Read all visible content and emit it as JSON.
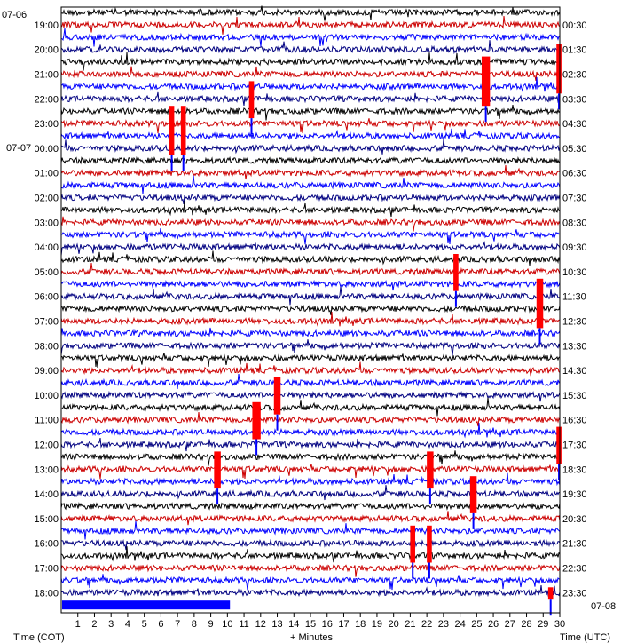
{
  "chart_data": {
    "type": "line",
    "title": "",
    "xlabel": "+ Minutes",
    "left_axis_label": "Time (COT)",
    "right_axis_label": "Time (UTC)",
    "start_date_label": "07-06",
    "next_day_label": "07-07",
    "end_date_label": "07-08",
    "x_ticks": [
      "1",
      "2",
      "3",
      "4",
      "5",
      "6",
      "7",
      "8",
      "9",
      "10",
      "11",
      "12",
      "13",
      "14",
      "15",
      "16",
      "17",
      "18",
      "19",
      "20",
      "21",
      "22",
      "23",
      "24",
      "25",
      "26",
      "27",
      "28",
      "29",
      "30"
    ],
    "xlim": [
      0,
      30
    ],
    "lines_per_hour": 2,
    "left_hour_labels": [
      "19:00",
      "20:00",
      "21:00",
      "22:00",
      "23:00",
      "00:00",
      "01:00",
      "02:00",
      "03:00",
      "04:00",
      "05:00",
      "06:00",
      "07:00",
      "08:00",
      "09:00",
      "10:00",
      "11:00",
      "12:00",
      "13:00",
      "14:00",
      "15:00",
      "16:00",
      "17:00",
      "18:00"
    ],
    "right_hour_labels": [
      "00:30",
      "01:30",
      "02:30",
      "03:30",
      "04:30",
      "05:30",
      "06:30",
      "07:30",
      "08:30",
      "09:30",
      "10:30",
      "11:30",
      "12:30",
      "13:30",
      "14:30",
      "15:30",
      "16:30",
      "17:30",
      "18:30",
      "19:30",
      "20:30",
      "21:30",
      "22:30",
      "23:30"
    ],
    "trace_colors": [
      "#000000",
      "#cc0000",
      "#0000ff",
      "#000080"
    ],
    "clip_color": "#ff0000",
    "grid": false,
    "events": [
      {
        "hour_line": 4,
        "minute": 25.3,
        "width": 0.5,
        "span_lines": 4
      },
      {
        "hour_line": 3,
        "minute": 29.8,
        "width": 0.3,
        "span_lines": 4
      },
      {
        "hour_line": 8,
        "minute": 6.5,
        "width": 0.3,
        "span_lines": 4
      },
      {
        "hour_line": 8,
        "minute": 7.2,
        "width": 0.3,
        "span_lines": 4
      },
      {
        "hour_line": 6,
        "minute": 11.3,
        "width": 0.3,
        "span_lines": 3
      },
      {
        "hour_line": 22,
        "minute": 28.6,
        "width": 0.4,
        "span_lines": 4
      },
      {
        "hour_line": 20,
        "minute": 23.6,
        "width": 0.3,
        "span_lines": 3
      },
      {
        "hour_line": 30,
        "minute": 12.8,
        "width": 0.4,
        "span_lines": 3
      },
      {
        "hour_line": 32,
        "minute": 11.5,
        "width": 0.5,
        "span_lines": 3
      },
      {
        "hour_line": 34,
        "minute": 29.8,
        "width": 0.3,
        "span_lines": 3
      },
      {
        "hour_line": 36,
        "minute": 22.0,
        "width": 0.4,
        "span_lines": 3
      },
      {
        "hour_line": 38,
        "minute": 24.6,
        "width": 0.4,
        "span_lines": 3
      },
      {
        "hour_line": 36,
        "minute": 9.2,
        "width": 0.4,
        "span_lines": 3
      },
      {
        "hour_line": 42,
        "minute": 21.0,
        "width": 0.3,
        "span_lines": 3
      },
      {
        "hour_line": 42,
        "minute": 22.0,
        "width": 0.3,
        "span_lines": 3
      },
      {
        "hour_line": 47,
        "minute": 29.3,
        "width": 0.3,
        "span_lines": 1
      }
    ]
  }
}
